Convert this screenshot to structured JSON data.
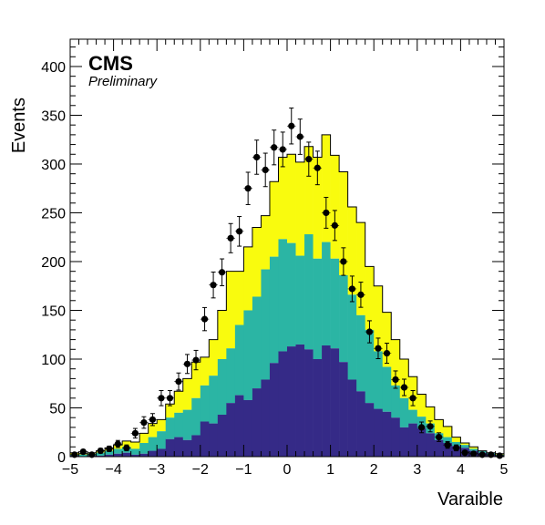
{
  "chart_data": {
    "type": "histogram",
    "title": "",
    "experiment_label": "CMS",
    "status_label": "Preliminary",
    "xlabel": "Varaible",
    "ylabel": "Events",
    "xlim": [
      -5,
      5
    ],
    "ylim": [
      0,
      428
    ],
    "bins": 50,
    "x_ticks": [
      -5,
      -4,
      -3,
      -2,
      -1,
      0,
      1,
      2,
      3,
      4,
      5
    ],
    "x_tick_labels": [
      "−5",
      "−4",
      "−3",
      "−2",
      "−1",
      "0",
      "1",
      "2",
      "3",
      "4",
      "5"
    ],
    "y_ticks": [
      0,
      50,
      100,
      150,
      200,
      250,
      300,
      350,
      400
    ],
    "y_tick_labels": [
      "0",
      "50",
      "100",
      "150",
      "200",
      "250",
      "300",
      "350",
      "400"
    ],
    "grid": false,
    "stack_colors": {
      "bottom": "#352a87",
      "middle": "#2bb5a4",
      "top": "#f9fb0e"
    },
    "stack_bottom": [
      1,
      0,
      1,
      1,
      2,
      3,
      4,
      2,
      3,
      6,
      8,
      18,
      20,
      17,
      22,
      36,
      34,
      43,
      55,
      63,
      58,
      70,
      79,
      96,
      108,
      113,
      115,
      110,
      100,
      114,
      111,
      97,
      79,
      67,
      55,
      49,
      46,
      40,
      30,
      34,
      29,
      24,
      17,
      14,
      11,
      9,
      6,
      4,
      2,
      1
    ],
    "stack_mid": [
      2,
      2,
      3,
      4,
      6,
      8,
      10,
      8,
      14,
      20,
      26,
      40,
      45,
      48,
      60,
      73,
      83,
      100,
      111,
      135,
      150,
      164,
      192,
      205,
      223,
      219,
      206,
      228,
      203,
      220,
      203,
      186,
      166,
      145,
      130,
      108,
      92,
      73,
      60,
      48,
      41,
      34,
      24,
      20,
      15,
      12,
      8,
      6,
      4,
      2
    ],
    "stack_total": [
      4,
      3,
      4,
      6,
      9,
      12,
      16,
      15,
      24,
      34,
      38,
      54,
      67,
      80,
      97,
      102,
      120,
      150,
      190,
      190,
      215,
      235,
      247,
      282,
      307,
      310,
      302,
      318,
      307,
      330,
      309,
      292,
      256,
      240,
      195,
      175,
      148,
      120,
      100,
      82,
      64,
      51,
      38,
      31,
      20,
      14,
      10,
      6,
      4,
      3
    ],
    "data_points": [
      2,
      5,
      2,
      6,
      8,
      13,
      9,
      24,
      35,
      38,
      60,
      60,
      77,
      95,
      99,
      141,
      176,
      189,
      224,
      231,
      275,
      307,
      294,
      317,
      315,
      339,
      328,
      305,
      296,
      250,
      237,
      200,
      172,
      166,
      128,
      111,
      106,
      79,
      71,
      60,
      30,
      31,
      20,
      12,
      9,
      4,
      3,
      2,
      2,
      1
    ]
  }
}
